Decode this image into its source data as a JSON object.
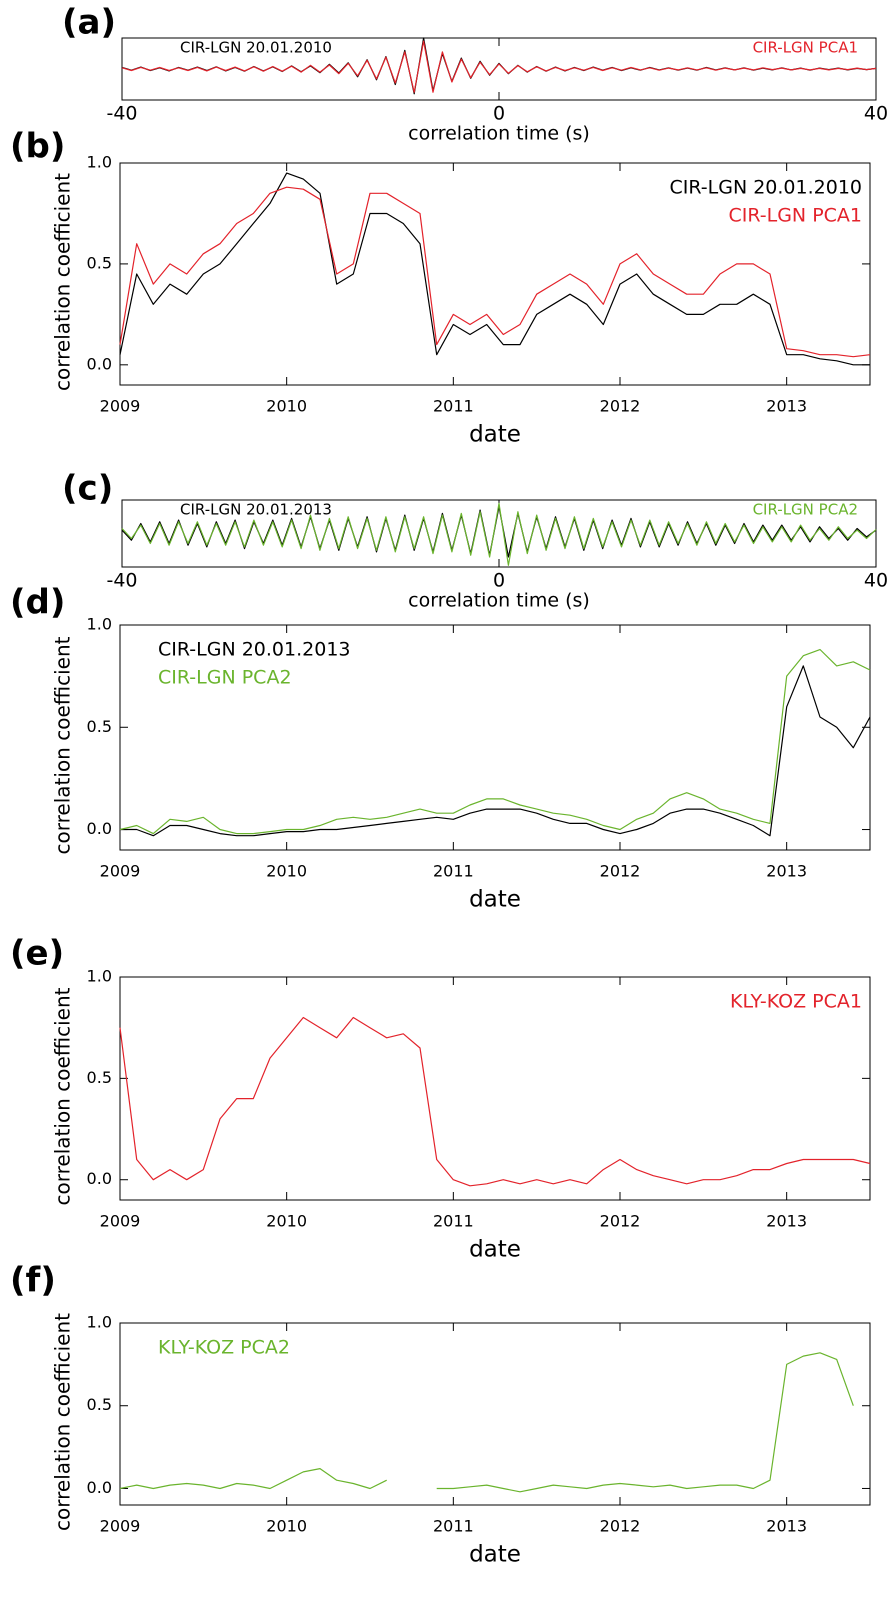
{
  "chart_data": [
    {
      "type": "line",
      "label": "(a)",
      "xlabel": "correlation time (s)",
      "xlim": [
        -40,
        40
      ],
      "xticks": [
        -40,
        0,
        40
      ],
      "ylim": [
        -1,
        1
      ],
      "legend": "split",
      "x": [
        -40,
        -39,
        -38,
        -37,
        -36,
        -35,
        -34,
        -33,
        -32,
        -31,
        -30,
        -29,
        -28,
        -27,
        -26,
        -25,
        -24,
        -23,
        -22,
        -21,
        -20,
        -19,
        -18,
        -17,
        -16,
        -15,
        -14,
        -13,
        -12,
        -11,
        -10,
        -9,
        -8,
        -7,
        -6,
        -5,
        -4,
        -3,
        -2,
        -1,
        0,
        1,
        2,
        3,
        4,
        5,
        6,
        7,
        8,
        9,
        10,
        11,
        12,
        13,
        14,
        15,
        16,
        17,
        18,
        19,
        20,
        21,
        22,
        23,
        24,
        25,
        26,
        27,
        28,
        29,
        30,
        31,
        32,
        33,
        34,
        35,
        36,
        37,
        38,
        39,
        40
      ],
      "series": [
        {
          "name": "CIR-LGN 20.01.2010",
          "color": "#000000",
          "values": [
            0.05,
            -0.04,
            0.06,
            -0.05,
            0.04,
            -0.06,
            0.05,
            -0.04,
            0.06,
            -0.05,
            0.07,
            -0.06,
            0.05,
            -0.07,
            0.08,
            -0.06,
            0.07,
            -0.08,
            0.1,
            -0.09,
            0.1,
            -0.12,
            0.15,
            -0.13,
            0.2,
            -0.25,
            0.3,
            -0.35,
            0.4,
            -0.5,
            0.6,
            -0.8,
            1.0,
            -0.7,
            0.5,
            -0.4,
            0.35,
            -0.3,
            0.25,
            -0.2,
            0.18,
            -0.15,
            0.12,
            -0.1,
            0.08,
            -0.07,
            0.06,
            -0.06,
            0.05,
            -0.05,
            0.06,
            -0.04,
            0.05,
            -0.05,
            0.04,
            -0.04,
            0.05,
            -0.03,
            0.04,
            -0.04,
            0.03,
            -0.04,
            0.05,
            -0.03,
            0.04,
            -0.03,
            0.04,
            -0.04,
            0.03,
            -0.03,
            0.04,
            -0.03,
            0.03,
            -0.04,
            0.03,
            -0.02,
            0.03,
            -0.03,
            0.02,
            -0.02,
            0.02
          ]
        },
        {
          "name": "CIR-LGN PCA1",
          "color": "#e3232b",
          "values": [
            0.04,
            -0.05,
            0.05,
            -0.04,
            0.05,
            -0.05,
            0.04,
            -0.05,
            0.05,
            -0.06,
            0.06,
            -0.05,
            0.06,
            -0.06,
            0.07,
            -0.07,
            0.08,
            -0.07,
            0.09,
            -0.1,
            0.12,
            -0.1,
            0.13,
            -0.15,
            0.18,
            -0.22,
            0.28,
            -0.32,
            0.38,
            -0.45,
            0.55,
            -0.75,
            0.9,
            -0.75,
            0.55,
            -0.42,
            0.32,
            -0.28,
            0.22,
            -0.18,
            0.16,
            -0.14,
            0.11,
            -0.09,
            0.07,
            -0.06,
            0.05,
            -0.05,
            0.04,
            -0.04,
            0.05,
            -0.05,
            0.04,
            -0.04,
            0.05,
            -0.03,
            0.04,
            -0.04,
            0.03,
            -0.03,
            0.04,
            -0.03,
            0.04,
            -0.04,
            0.03,
            -0.03,
            0.03,
            -0.03,
            0.04,
            -0.02,
            0.03,
            -0.03,
            0.02,
            -0.03,
            0.02,
            -0.03,
            0.02,
            -0.02,
            0.03,
            -0.02,
            0.02
          ]
        }
      ]
    },
    {
      "type": "line",
      "label": "(b)",
      "xlabel": "date",
      "ylabel": "correlation coefficient",
      "xlim": [
        2009,
        2013.5
      ],
      "xticks": [
        2009,
        2010,
        2011,
        2012,
        2013
      ],
      "ylim": [
        -0.1,
        1.0
      ],
      "yticks": [
        {
          "value": 0,
          "label": "0.0"
        },
        0.5,
        {
          "value": 1,
          "label": "1.0"
        }
      ],
      "legend": "upper right",
      "x": [
        2009.0,
        2009.1,
        2009.2,
        2009.3,
        2009.4,
        2009.5,
        2009.6,
        2009.7,
        2009.8,
        2009.9,
        2010.0,
        2010.1,
        2010.2,
        2010.3,
        2010.4,
        2010.5,
        2010.6,
        2010.7,
        2010.8,
        2010.9,
        2011.0,
        2011.1,
        2011.2,
        2011.3,
        2011.4,
        2011.5,
        2011.6,
        2011.7,
        2011.8,
        2011.9,
        2012.0,
        2012.1,
        2012.2,
        2012.3,
        2012.4,
        2012.5,
        2012.6,
        2012.7,
        2012.8,
        2012.9,
        2013.0,
        2013.1,
        2013.2,
        2013.3,
        2013.4,
        2013.5
      ],
      "series": [
        {
          "name": "CIR-LGN 20.01.2010",
          "color": "#000000",
          "values": [
            0.05,
            0.45,
            0.3,
            0.4,
            0.35,
            0.45,
            0.5,
            0.6,
            0.7,
            0.8,
            0.95,
            0.92,
            0.85,
            0.4,
            0.45,
            0.75,
            0.75,
            0.7,
            0.6,
            0.05,
            0.2,
            0.15,
            0.2,
            0.1,
            0.1,
            0.25,
            0.3,
            0.35,
            0.3,
            0.2,
            0.4,
            0.45,
            0.35,
            0.3,
            0.25,
            0.25,
            0.3,
            0.3,
            0.35,
            0.3,
            0.05,
            0.05,
            0.03,
            0.02,
            0.0,
            0.0
          ]
        },
        {
          "name": "CIR-LGN PCA1",
          "color": "#e3232b",
          "values": [
            0.1,
            0.6,
            0.4,
            0.5,
            0.45,
            0.55,
            0.6,
            0.7,
            0.75,
            0.85,
            0.88,
            0.87,
            0.82,
            0.45,
            0.5,
            0.85,
            0.85,
            0.8,
            0.75,
            0.1,
            0.25,
            0.2,
            0.25,
            0.15,
            0.2,
            0.35,
            0.4,
            0.45,
            0.4,
            0.3,
            0.5,
            0.55,
            0.45,
            0.4,
            0.35,
            0.35,
            0.45,
            0.5,
            0.5,
            0.45,
            0.08,
            0.07,
            0.05,
            0.05,
            0.04,
            0.05
          ]
        }
      ]
    },
    {
      "type": "line",
      "label": "(c)",
      "xlabel": "correlation time (s)",
      "xlim": [
        -40,
        40
      ],
      "xticks": [
        -40,
        0,
        40
      ],
      "ylim": [
        -1,
        1
      ],
      "legend": "split",
      "x": [
        -40,
        -39,
        -38,
        -37,
        -36,
        -35,
        -34,
        -33,
        -32,
        -31,
        -30,
        -29,
        -28,
        -27,
        -26,
        -25,
        -24,
        -23,
        -22,
        -21,
        -20,
        -19,
        -18,
        -17,
        -16,
        -15,
        -14,
        -13,
        -12,
        -11,
        -10,
        -9,
        -8,
        -7,
        -6,
        -5,
        -4,
        -3,
        -2,
        -1,
        0,
        1,
        2,
        3,
        4,
        5,
        6,
        7,
        8,
        9,
        10,
        11,
        12,
        13,
        14,
        15,
        16,
        17,
        18,
        19,
        20,
        21,
        22,
        23,
        24,
        25,
        26,
        27,
        28,
        29,
        30,
        31,
        32,
        33,
        34,
        35,
        36,
        37,
        38,
        39,
        40
      ],
      "series": [
        {
          "name": "CIR-LGN 20.01.2013",
          "color": "#000000",
          "values": [
            0.1,
            -0.2,
            0.3,
            -0.25,
            0.35,
            -0.3,
            0.4,
            -0.35,
            0.3,
            -0.4,
            0.35,
            -0.3,
            0.4,
            -0.45,
            0.35,
            -0.3,
            0.4,
            -0.35,
            0.45,
            -0.4,
            0.5,
            -0.45,
            0.4,
            -0.5,
            0.45,
            -0.4,
            0.5,
            -0.55,
            0.45,
            -0.5,
            0.55,
            -0.5,
            0.45,
            -0.55,
            0.6,
            -0.5,
            0.55,
            -0.6,
            0.7,
            -0.65,
            0.8,
            -0.7,
            0.6,
            -0.55,
            0.5,
            -0.45,
            0.5,
            -0.4,
            0.45,
            -0.5,
            0.4,
            -0.45,
            0.4,
            -0.35,
            0.45,
            -0.4,
            0.35,
            -0.4,
            0.3,
            -0.35,
            0.35,
            -0.3,
            0.3,
            -0.35,
            0.25,
            -0.3,
            0.3,
            -0.25,
            0.25,
            -0.2,
            0.25,
            -0.2,
            0.2,
            -0.25,
            0.2,
            -0.15,
            0.15,
            -0.2,
            0.15,
            -0.1,
            0.1
          ]
        },
        {
          "name": "CIR-LGN PCA2",
          "color": "#6ab42d",
          "values": [
            0.15,
            -0.15,
            0.25,
            -0.3,
            0.3,
            -0.35,
            0.35,
            -0.3,
            0.35,
            -0.35,
            0.3,
            -0.35,
            0.35,
            -0.4,
            0.4,
            -0.35,
            0.35,
            -0.4,
            0.4,
            -0.45,
            0.55,
            -0.5,
            0.45,
            -0.45,
            0.5,
            -0.45,
            0.45,
            -0.5,
            0.5,
            -0.55,
            0.5,
            -0.45,
            0.5,
            -0.6,
            0.55,
            -0.55,
            0.6,
            -0.65,
            0.65,
            -0.7,
            0.9,
            -0.95,
            0.65,
            -0.6,
            0.55,
            -0.5,
            0.45,
            -0.45,
            0.5,
            -0.45,
            0.45,
            -0.4,
            0.35,
            -0.4,
            0.4,
            -0.35,
            0.4,
            -0.35,
            0.35,
            -0.3,
            0.3,
            -0.35,
            0.35,
            -0.3,
            0.3,
            -0.25,
            0.25,
            -0.3,
            0.2,
            -0.25,
            0.2,
            -0.25,
            0.25,
            -0.2,
            0.15,
            -0.2,
            0.2,
            -0.15,
            0.1,
            -0.15,
            0.12
          ]
        }
      ]
    },
    {
      "type": "line",
      "label": "(d)",
      "xlabel": "date",
      "ylabel": "correlation coefficient",
      "xlim": [
        2009,
        2013.5
      ],
      "xticks": [
        2009,
        2010,
        2011,
        2012,
        2013
      ],
      "ylim": [
        -0.1,
        1.0
      ],
      "yticks": [
        {
          "value": 0,
          "label": "0.0"
        },
        0.5,
        {
          "value": 1,
          "label": "1.0"
        }
      ],
      "legend": "upper left",
      "x": [
        2009.0,
        2009.1,
        2009.2,
        2009.3,
        2009.4,
        2009.5,
        2009.6,
        2009.7,
        2009.8,
        2009.9,
        2010.0,
        2010.1,
        2010.2,
        2010.3,
        2010.4,
        2010.5,
        2010.6,
        2010.7,
        2010.8,
        2010.9,
        2011.0,
        2011.1,
        2011.2,
        2011.3,
        2011.4,
        2011.5,
        2011.6,
        2011.7,
        2011.8,
        2011.9,
        2012.0,
        2012.1,
        2012.2,
        2012.3,
        2012.4,
        2012.5,
        2012.6,
        2012.7,
        2012.8,
        2012.9,
        2013.0,
        2013.1,
        2013.2,
        2013.3,
        2013.4,
        2013.5
      ],
      "series": [
        {
          "name": "CIR-LGN 20.01.2013",
          "color": "#000000",
          "values": [
            0.0,
            0.0,
            -0.03,
            0.02,
            0.02,
            0.0,
            -0.02,
            -0.03,
            -0.03,
            -0.02,
            -0.01,
            -0.01,
            0.0,
            0.0,
            0.01,
            0.02,
            0.03,
            0.04,
            0.05,
            0.06,
            0.05,
            0.08,
            0.1,
            0.1,
            0.1,
            0.08,
            0.05,
            0.03,
            0.03,
            0.0,
            -0.02,
            0.0,
            0.03,
            0.08,
            0.1,
            0.1,
            0.08,
            0.05,
            0.02,
            -0.03,
            0.6,
            0.8,
            0.55,
            0.5,
            0.4,
            0.55
          ]
        },
        {
          "name": "CIR-LGN PCA2",
          "color": "#6ab42d",
          "values": [
            0.0,
            0.02,
            -0.02,
            0.05,
            0.04,
            0.06,
            0.0,
            -0.02,
            -0.02,
            -0.01,
            0.0,
            0.0,
            0.02,
            0.05,
            0.06,
            0.05,
            0.06,
            0.08,
            0.1,
            0.08,
            0.08,
            0.12,
            0.15,
            0.15,
            0.12,
            0.1,
            0.08,
            0.07,
            0.05,
            0.02,
            0.0,
            0.05,
            0.08,
            0.15,
            0.18,
            0.15,
            0.1,
            0.08,
            0.05,
            0.03,
            0.75,
            0.85,
            0.88,
            0.8,
            0.82,
            0.78
          ]
        }
      ]
    },
    {
      "type": "line",
      "label": "(e)",
      "xlabel": "date",
      "ylabel": "correlation coefficient",
      "xlim": [
        2009,
        2013.5
      ],
      "xticks": [
        2009,
        2010,
        2011,
        2012,
        2013
      ],
      "ylim": [
        -0.1,
        1.0
      ],
      "yticks": [
        {
          "value": 0,
          "label": "0.0"
        },
        0.5,
        {
          "value": 1,
          "label": "1.0"
        }
      ],
      "legend": "upper right",
      "x": [
        2009.0,
        2009.1,
        2009.2,
        2009.3,
        2009.4,
        2009.5,
        2009.6,
        2009.7,
        2009.8,
        2009.9,
        2010.0,
        2010.1,
        2010.2,
        2010.3,
        2010.4,
        2010.5,
        2010.6,
        2010.7,
        2010.8,
        2010.9,
        2011.0,
        2011.1,
        2011.2,
        2011.3,
        2011.4,
        2011.5,
        2011.6,
        2011.7,
        2011.8,
        2011.9,
        2012.0,
        2012.1,
        2012.2,
        2012.3,
        2012.4,
        2012.5,
        2012.6,
        2012.7,
        2012.8,
        2012.9,
        2013.0,
        2013.1,
        2013.2,
        2013.3,
        2013.4,
        2013.5
      ],
      "series": [
        {
          "name": "KLY-KOZ PCA1",
          "color": "#e3232b",
          "values": [
            0.75,
            0.1,
            0.0,
            0.05,
            0.0,
            0.05,
            0.3,
            0.4,
            0.4,
            0.6,
            0.7,
            0.8,
            0.75,
            0.7,
            0.8,
            0.75,
            0.7,
            0.72,
            0.65,
            0.1,
            0.0,
            -0.03,
            -0.02,
            0.0,
            -0.02,
            0.0,
            -0.02,
            0.0,
            -0.02,
            0.05,
            0.1,
            0.05,
            0.02,
            0.0,
            -0.02,
            0.0,
            0.0,
            0.02,
            0.05,
            0.05,
            0.08,
            0.1,
            0.1,
            0.1,
            0.1,
            0.08
          ]
        }
      ]
    },
    {
      "type": "line",
      "label": "(f)",
      "xlabel": "date",
      "ylabel": "correlation coefficient",
      "xlim": [
        2009,
        2013.5
      ],
      "xticks": [
        2009,
        2010,
        2011,
        2012,
        2013
      ],
      "ylim": [
        -0.1,
        1.0
      ],
      "yticks": [
        {
          "value": 0,
          "label": "0.0"
        },
        0.5,
        {
          "value": 1,
          "label": "1.0"
        }
      ],
      "legend": "upper left",
      "x": [
        2009.0,
        2009.1,
        2009.2,
        2009.3,
        2009.4,
        2009.5,
        2009.6,
        2009.7,
        2009.8,
        2009.9,
        2010.0,
        2010.1,
        2010.2,
        2010.3,
        2010.4,
        2010.5,
        2010.6,
        2010.7,
        2010.8,
        2010.9,
        2011.0,
        2011.1,
        2011.2,
        2011.3,
        2011.4,
        2011.5,
        2011.6,
        2011.7,
        2011.8,
        2011.9,
        2012.0,
        2012.1,
        2012.2,
        2012.3,
        2012.4,
        2012.5,
        2012.6,
        2012.7,
        2012.8,
        2012.9,
        2013.0,
        2013.1,
        2013.2,
        2013.3,
        2013.4,
        2013.5
      ],
      "series": [
        {
          "name": "KLY-KOZ PCA2",
          "color": "#6ab42d",
          "values": [
            0.0,
            0.02,
            0.0,
            0.02,
            0.03,
            0.02,
            0.0,
            0.03,
            0.02,
            0.0,
            0.05,
            0.1,
            0.12,
            0.05,
            0.03,
            0.0,
            0.05,
            null,
            null,
            0.0,
            0.0,
            0.01,
            0.02,
            0.0,
            -0.02,
            0.0,
            0.02,
            0.01,
            0.0,
            0.02,
            0.03,
            0.02,
            0.01,
            0.02,
            0.0,
            0.01,
            0.02,
            0.02,
            0.0,
            0.05,
            0.75,
            0.8,
            0.82,
            0.78,
            0.5,
            null
          ]
        }
      ]
    }
  ]
}
